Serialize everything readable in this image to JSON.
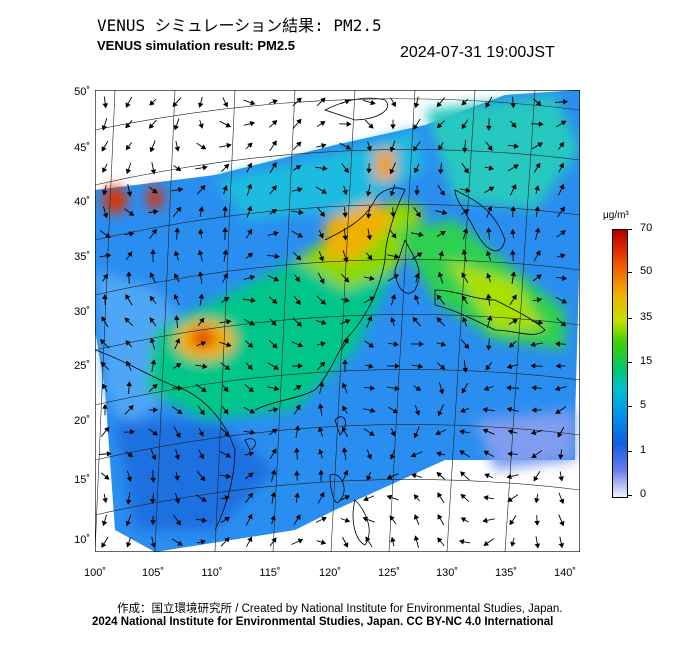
{
  "title_jp": "VENUS シミュレーション結果: PM2.5",
  "title_en": "VENUS simulation result: PM2.5",
  "timestamp": "2024-07-31 19:00JST",
  "lat_labels": [
    "50˚",
    "45˚",
    "40˚",
    "35˚",
    "30˚",
    "25˚",
    "20˚",
    "15˚",
    "10˚"
  ],
  "lon_labels": [
    "100˚",
    "105˚",
    "110˚",
    "115˚",
    "120˚",
    "125˚",
    "130˚",
    "135˚",
    "140˚"
  ],
  "colorbar": {
    "unit": "μg/m³",
    "labels": [
      "70",
      "50",
      "35",
      "15",
      "5",
      "1",
      "0"
    ],
    "colors": [
      "#b00000",
      "#f06000",
      "#f0b000",
      "#40d000",
      "#00c0d0",
      "#1060e0",
      "#f0f0ff"
    ]
  },
  "credit_line1": "作成：国立環境研究所 / Created by National Institute for Environmental Studies, Japan.",
  "credit_line2": "2024 National Institute for Environmental Studies, Japan. CC BY-NC 4.0 International"
}
